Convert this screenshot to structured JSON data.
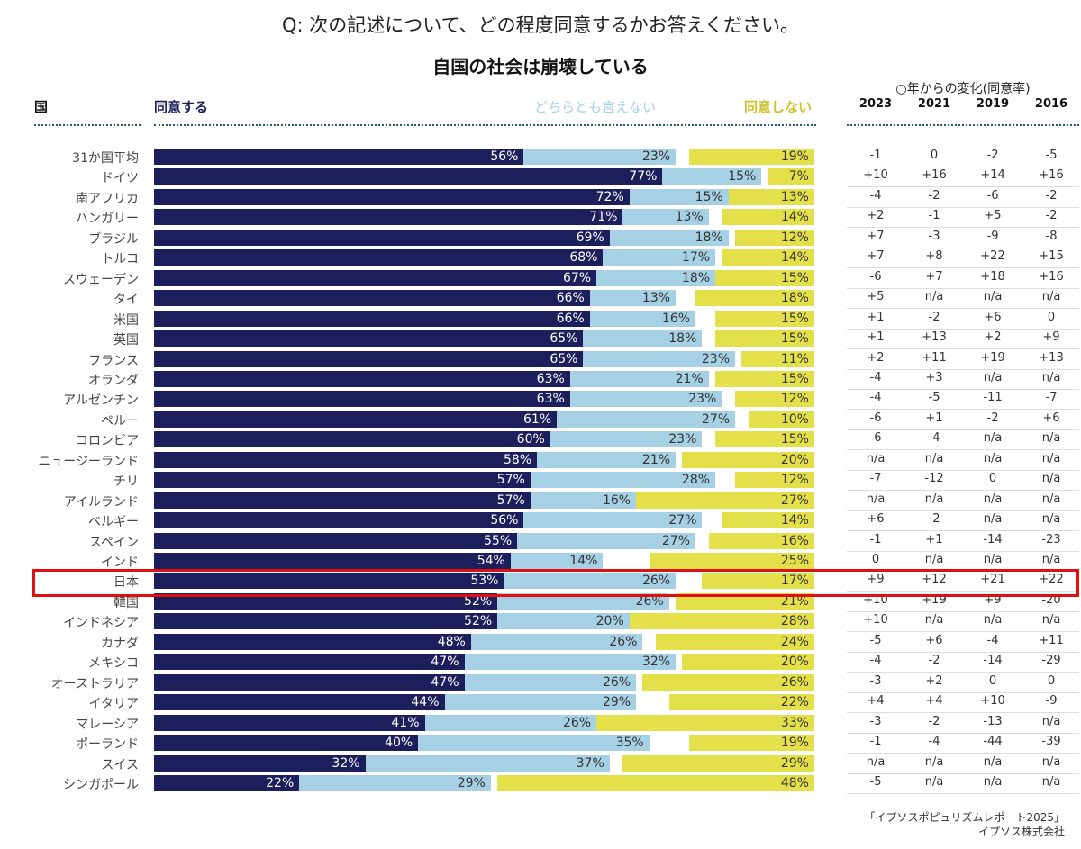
{
  "question": "Q: 次の記述について、どの程度同意するかお答えください。",
  "chart_data": {
    "type": "bar",
    "orientation": "horizontal-stacked-100",
    "title": "自国の社会は崩壊している",
    "category_header": "国",
    "colors": {
      "agree": "#1c1f5c",
      "neutral": "#a6d0e4",
      "disagree": "#e3e04a",
      "highlight": "#e01010"
    },
    "series": [
      {
        "name": "同意する",
        "key": "agree"
      },
      {
        "name": "どちらとも言えない",
        "key": "neutral"
      },
      {
        "name": "同意しない",
        "key": "disagree"
      }
    ],
    "unit": "%",
    "highlighted": "日本",
    "rows": [
      {
        "country": "31か国平均",
        "agree": 56,
        "neutral": 23,
        "disagree": 19,
        "change": [
          "-1",
          "0",
          "-2",
          "-5"
        ]
      },
      {
        "country": "ドイツ",
        "agree": 77,
        "neutral": 15,
        "disagree": 7,
        "change": [
          "+10",
          "+16",
          "+14",
          "+16"
        ]
      },
      {
        "country": "南アフリカ",
        "agree": 72,
        "neutral": 15,
        "disagree": 13,
        "change": [
          "-4",
          "-2",
          "-6",
          "-2"
        ]
      },
      {
        "country": "ハンガリー",
        "agree": 71,
        "neutral": 13,
        "disagree": 14,
        "change": [
          "+2",
          "-1",
          "+5",
          "-2"
        ]
      },
      {
        "country": "ブラジル",
        "agree": 69,
        "neutral": 18,
        "disagree": 12,
        "change": [
          "+7",
          "-3",
          "-9",
          "-8"
        ]
      },
      {
        "country": "トルコ",
        "agree": 68,
        "neutral": 17,
        "disagree": 14,
        "change": [
          "+7",
          "+8",
          "+22",
          "+15"
        ]
      },
      {
        "country": "スウェーデン",
        "agree": 67,
        "neutral": 18,
        "disagree": 15,
        "change": [
          "-6",
          "+7",
          "+18",
          "+16"
        ]
      },
      {
        "country": "タイ",
        "agree": 66,
        "neutral": 13,
        "disagree": 18,
        "change": [
          "+5",
          "n/a",
          "n/a",
          "n/a"
        ]
      },
      {
        "country": "米国",
        "agree": 66,
        "neutral": 16,
        "disagree": 15,
        "change": [
          "+1",
          "-2",
          "+6",
          "0"
        ]
      },
      {
        "country": "英国",
        "agree": 65,
        "neutral": 18,
        "disagree": 15,
        "change": [
          "+1",
          "+13",
          "+2",
          "+9"
        ]
      },
      {
        "country": "フランス",
        "agree": 65,
        "neutral": 23,
        "disagree": 11,
        "change": [
          "+2",
          "+11",
          "+19",
          "+13"
        ]
      },
      {
        "country": "オランダ",
        "agree": 63,
        "neutral": 21,
        "disagree": 15,
        "change": [
          "-4",
          "+3",
          "n/a",
          "n/a"
        ]
      },
      {
        "country": "アルゼンチン",
        "agree": 63,
        "neutral": 23,
        "disagree": 12,
        "change": [
          "-4",
          "-5",
          "-11",
          "-7"
        ]
      },
      {
        "country": "ペルー",
        "agree": 61,
        "neutral": 27,
        "disagree": 10,
        "change": [
          "-6",
          "+1",
          "-2",
          "+6"
        ]
      },
      {
        "country": "コロンビア",
        "agree": 60,
        "neutral": 23,
        "disagree": 15,
        "change": [
          "-6",
          "-4",
          "n/a",
          "n/a"
        ]
      },
      {
        "country": "ニュージーランド",
        "agree": 58,
        "neutral": 21,
        "disagree": 20,
        "change": [
          "n/a",
          "n/a",
          "n/a",
          "n/a"
        ]
      },
      {
        "country": "チリ",
        "agree": 57,
        "neutral": 28,
        "disagree": 12,
        "change": [
          "-7",
          "-12",
          "0",
          "n/a"
        ]
      },
      {
        "country": "アイルランド",
        "agree": 57,
        "neutral": 16,
        "disagree": 27,
        "change": [
          "n/a",
          "n/a",
          "n/a",
          "n/a"
        ]
      },
      {
        "country": "ベルギー",
        "agree": 56,
        "neutral": 27,
        "disagree": 14,
        "change": [
          "+6",
          "-2",
          "n/a",
          "n/a"
        ]
      },
      {
        "country": "スペイン",
        "agree": 55,
        "neutral": 27,
        "disagree": 16,
        "change": [
          "-1",
          "+1",
          "-14",
          "-23"
        ]
      },
      {
        "country": "インド",
        "agree": 54,
        "neutral": 14,
        "disagree": 25,
        "change": [
          "0",
          "n/a",
          "n/a",
          "n/a"
        ]
      },
      {
        "country": "日本",
        "agree": 53,
        "neutral": 26,
        "disagree": 17,
        "change": [
          "+9",
          "+12",
          "+21",
          "+22"
        ]
      },
      {
        "country": "韓国",
        "agree": 52,
        "neutral": 26,
        "disagree": 21,
        "change": [
          "+10",
          "+19",
          "+9",
          "-20"
        ]
      },
      {
        "country": "インドネシア",
        "agree": 52,
        "neutral": 20,
        "disagree": 28,
        "change": [
          "+10",
          "n/a",
          "n/a",
          "n/a"
        ]
      },
      {
        "country": "カナダ",
        "agree": 48,
        "neutral": 26,
        "disagree": 24,
        "change": [
          "-5",
          "+6",
          "-4",
          "+11"
        ]
      },
      {
        "country": "メキシコ",
        "agree": 47,
        "neutral": 32,
        "disagree": 20,
        "change": [
          "-4",
          "-2",
          "-14",
          "-29"
        ]
      },
      {
        "country": "オーストラリア",
        "agree": 47,
        "neutral": 26,
        "disagree": 26,
        "change": [
          "-3",
          "+2",
          "0",
          "0"
        ]
      },
      {
        "country": "イタリア",
        "agree": 44,
        "neutral": 29,
        "disagree": 22,
        "change": [
          "+4",
          "+4",
          "+10",
          "-9"
        ]
      },
      {
        "country": "マレーシア",
        "agree": 41,
        "neutral": 26,
        "disagree": 33,
        "change": [
          "-3",
          "-2",
          "-13",
          "n/a"
        ]
      },
      {
        "country": "ポーランド",
        "agree": 40,
        "neutral": 35,
        "disagree": 19,
        "change": [
          "-1",
          "-4",
          "-44",
          "-39"
        ]
      },
      {
        "country": "スイス",
        "agree": 32,
        "neutral": 37,
        "disagree": 29,
        "change": [
          "n/a",
          "n/a",
          "n/a",
          "n/a"
        ]
      },
      {
        "country": "シンガポール",
        "agree": 22,
        "neutral": 29,
        "disagree": 48,
        "change": [
          "-5",
          "n/a",
          "n/a",
          "n/a"
        ]
      }
    ],
    "change_table": {
      "title": "○年からの変化(同意率)",
      "years": [
        "2023",
        "2021",
        "2019",
        "2016"
      ]
    }
  },
  "source": {
    "line1": "「イプソスポピュリズムレポート2025」",
    "line2": "イプソス株式会社"
  }
}
